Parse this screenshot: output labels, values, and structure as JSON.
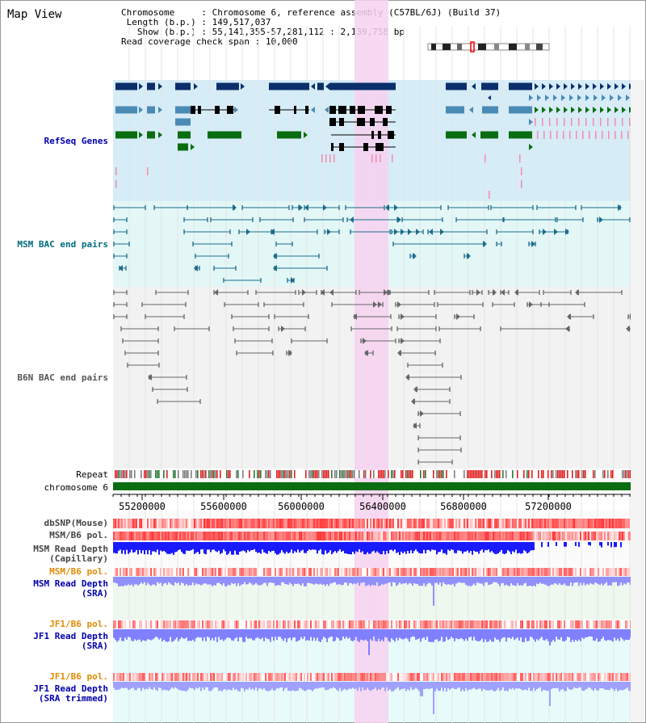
{
  "header": {
    "title": "Map View",
    "chromosome_label": "Chromosome",
    "chromosome_value": "Chromosome 6, reference assembly (C57BL/6J) (Build 37)",
    "length_label": "Length (b.p.)",
    "length_value": "149,517,037",
    "show_label": "Show (b.p.)",
    "show_value": "55,141,355-57,281,112 : 2,139,758 bp",
    "coverage_label": "Read coverage check span",
    "coverage_value": "10,000"
  },
  "tracks": {
    "refseq": "RefSeq Genes",
    "msm_bac": "MSM BAC end pairs",
    "b6n_bac": "B6N BAC end pairs",
    "repeat": "Repeat",
    "chromosome": "chromosome 6",
    "dbsnp": "dbSNP(Mouse)",
    "msm_b6_pol_1": "MSM/B6 pol.",
    "msm_depth_cap_1": "MSM Read Depth",
    "msm_depth_cap_2": "(Capillary)",
    "msm_b6_pol_2": "MSM/B6 pol.",
    "msm_depth_sra_1": "MSM Read Depth",
    "msm_depth_sra_2": "(SRA)",
    "jf1_b6_pol_1": "JF1/B6 pol.",
    "jf1_depth_sra_1": "JF1 Read Depth",
    "jf1_depth_sra_2": "(SRA)",
    "jf1_b6_pol_2": "JF1/B6 pol.",
    "jf1_depth_trim_1": "JF1 Read Depth",
    "jf1_depth_trim_2": "(SRA trimmed)"
  },
  "axis": {
    "ticks": [
      "55200000",
      "55600000",
      "56000000",
      "56400000",
      "56800000",
      "57200000"
    ]
  },
  "colors": {
    "refseq_bg": "#d6ecf7",
    "msm_bg": "#e3f7f7",
    "b6n_bg": "#f2f2f2",
    "highlight": "#f7d2f0",
    "refseq_dark": "#0b2f6b",
    "refseq_mid": "#4a8bb5",
    "refseq_green": "#0a6d12",
    "msm_bac": "#1b6c8c",
    "b6n_bac": "#666666",
    "chromosome": "#0a6d12",
    "label_blue": "#0000aa",
    "label_teal": "#006c80",
    "label_orange": "#e08a00",
    "label_gray": "#444444"
  }
}
